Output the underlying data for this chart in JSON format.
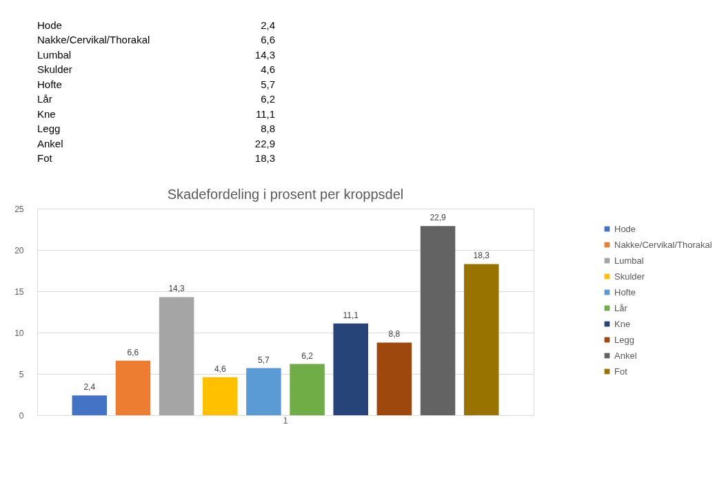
{
  "chart_data": {
    "type": "bar",
    "title": "Skadefordeling i prosent per kroppsdel",
    "categories": [
      "1"
    ],
    "series": [
      {
        "name": "Hode",
        "color": "#4472c4",
        "values": [
          2.4
        ],
        "value_labels": [
          "2,4"
        ]
      },
      {
        "name": "Nakke/Cervikal/Thorakal",
        "color": "#ed7d31",
        "values": [
          6.6
        ],
        "value_labels": [
          "6,6"
        ]
      },
      {
        "name": "Lumbal",
        "color": "#a5a5a5",
        "values": [
          14.3
        ],
        "value_labels": [
          "14,3"
        ]
      },
      {
        "name": "Skulder",
        "color": "#ffc000",
        "values": [
          4.6
        ],
        "value_labels": [
          "4,6"
        ]
      },
      {
        "name": "Hofte",
        "color": "#5b9bd5",
        "values": [
          5.7
        ],
        "value_labels": [
          "5,7"
        ]
      },
      {
        "name": "Lår",
        "color": "#70ad47",
        "values": [
          6.2
        ],
        "value_labels": [
          "6,2"
        ]
      },
      {
        "name": "Kne",
        "color": "#264478",
        "values": [
          11.1
        ],
        "value_labels": [
          "11,1"
        ]
      },
      {
        "name": "Legg",
        "color": "#9e480e",
        "values": [
          8.8
        ],
        "value_labels": [
          "8,8"
        ]
      },
      {
        "name": "Ankel",
        "color": "#636363",
        "values": [
          22.9
        ],
        "value_labels": [
          "22,9"
        ]
      },
      {
        "name": "Fot",
        "color": "#997300",
        "values": [
          18.3
        ],
        "value_labels": [
          "18,3"
        ]
      }
    ],
    "ylim": [
      0,
      25
    ],
    "yticks": [
      0,
      5,
      10,
      15,
      20,
      25
    ],
    "grid": "y",
    "legend": "right"
  }
}
